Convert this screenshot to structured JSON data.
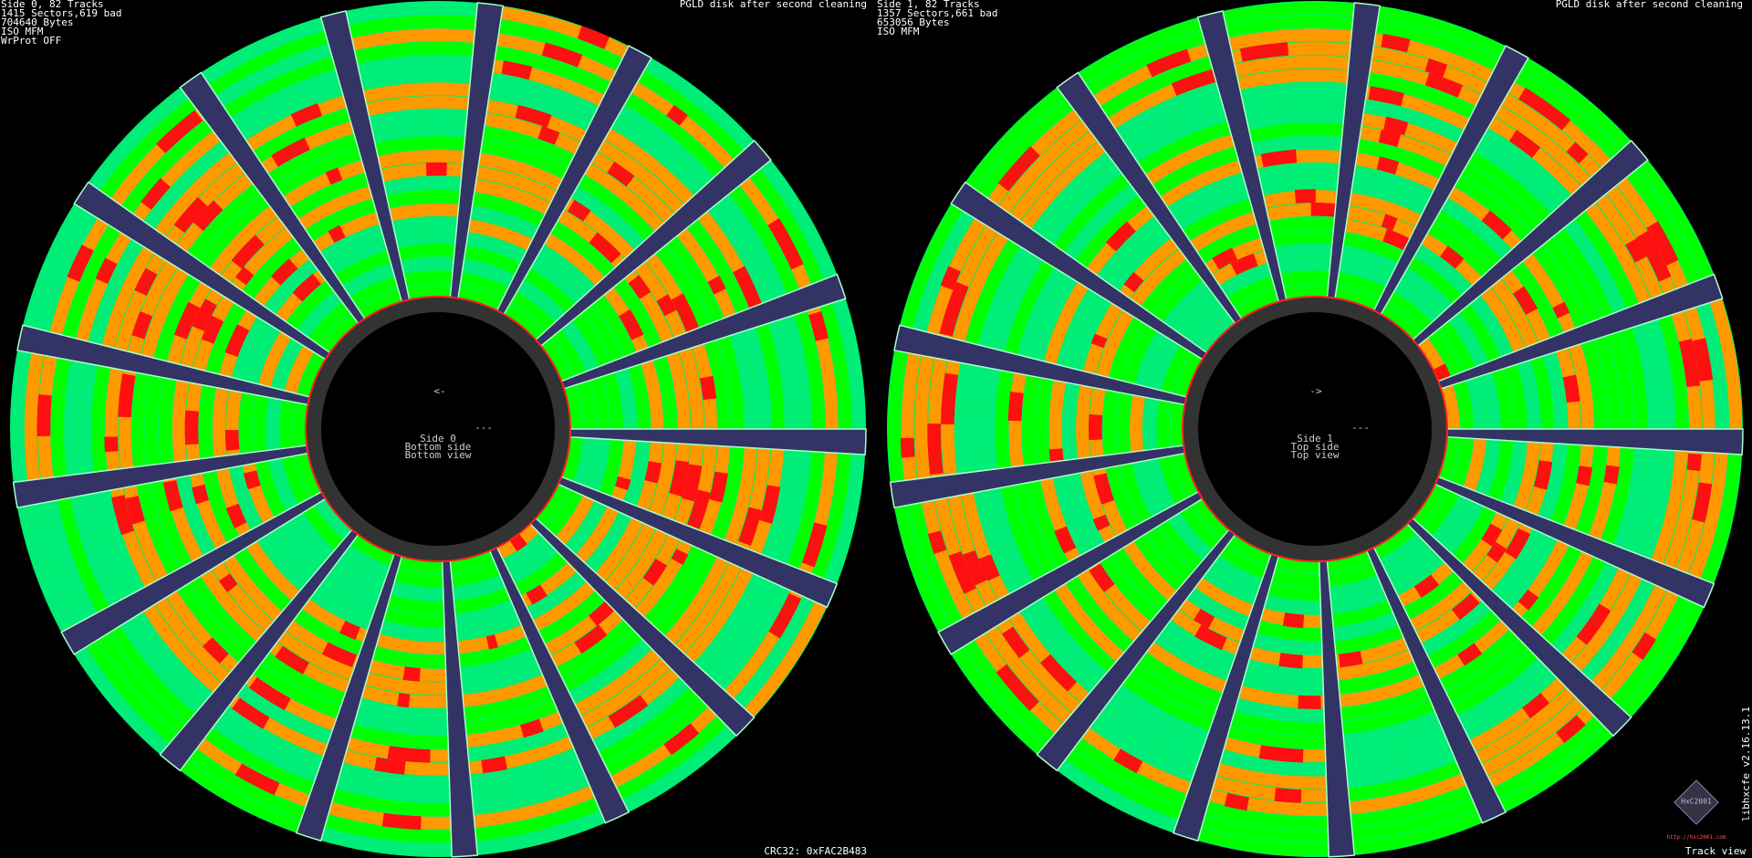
{
  "left": {
    "header": [
      "Side 0, 82 Tracks",
      "1415 Sectors,619 bad",
      "704640 Bytes",
      "ISO MFM",
      "WrProt OFF"
    ],
    "title": "PGLD disk after second cleaning",
    "center": {
      "arrow": "<-",
      "dash": "---",
      "lines": [
        "Side 0",
        "Bottom side",
        "Bottom view"
      ]
    }
  },
  "right": {
    "header": [
      "Side 1, 82 Tracks",
      "1357 Sectors,661 bad",
      "653056 Bytes",
      "ISO MFM"
    ],
    "title": "PGLD disk after second cleaning",
    "center": {
      "arrow": "->",
      "dash": "---",
      "lines": [
        "Side 1",
        "Top side",
        "Top view"
      ]
    }
  },
  "footer": {
    "crc": "CRC32: 0xFAC2B483",
    "view": "Track view",
    "version": "libhxcfe v2.16.13.1",
    "logo": "HxC2001",
    "url": "http://hxc2001.com"
  }
}
